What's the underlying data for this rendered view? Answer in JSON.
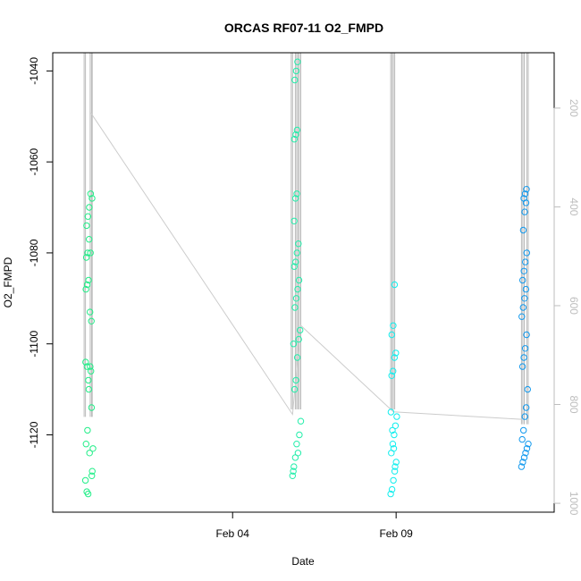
{
  "chart_data": {
    "type": "scatter",
    "title": "ORCAS RF07-11 O2_FMPD",
    "xlabel": "Date",
    "ylabel": "O2_FMPD",
    "x_ticks": [
      "Feb 04",
      "Feb 09"
    ],
    "x_tick_dates": [
      "2016-02-04",
      "2016-02-09"
    ],
    "xlim": [
      "2016-01-29T12:00",
      "2016-02-13T20:00"
    ],
    "y_ticks": [
      -1040,
      -1060,
      -1080,
      -1100,
      -1120
    ],
    "ylim": [
      -1137,
      -1036
    ],
    "right_axis": {
      "ticks": [
        200,
        400,
        600,
        800,
        1000
      ],
      "lim": [
        1018,
        88
      ],
      "color": "#bdbdbd"
    },
    "grid": false,
    "series": [
      {
        "color": "#22ee88",
        "points": [
          [
            "2016-01-30T12:00",
            -1130
          ],
          [
            "2016-01-30T13:00",
            -1132.5
          ],
          [
            "2016-01-30T14:00",
            -1133
          ],
          [
            "2016-01-30T15:00",
            -1124
          ],
          [
            "2016-01-30T12:30",
            -1122
          ],
          [
            "2016-01-30T13:30",
            -1119
          ],
          [
            "2016-01-30T14:30",
            -1110
          ],
          [
            "2016-01-30T16:00",
            -1106
          ],
          [
            "2016-01-30T12:10",
            -1104
          ],
          [
            "2016-01-30T13:10",
            -1105
          ],
          [
            "2016-01-30T14:10",
            -1108
          ],
          [
            "2016-01-30T15:30",
            -1105
          ],
          [
            "2016-01-30T16:30",
            -1114
          ],
          [
            "2016-01-30T17:00",
            -1128
          ],
          [
            "2016-01-30T17:30",
            -1123
          ],
          [
            "2016-01-30T16:40",
            -1129
          ],
          [
            "2016-01-30T12:20",
            -1088
          ],
          [
            "2016-01-30T13:20",
            -1087
          ],
          [
            "2016-01-30T14:20",
            -1086
          ],
          [
            "2016-01-30T15:20",
            -1093
          ],
          [
            "2016-01-30T16:20",
            -1095
          ],
          [
            "2016-01-30T12:40",
            -1081
          ],
          [
            "2016-01-30T13:40",
            -1080
          ],
          [
            "2016-01-30T14:40",
            -1077
          ],
          [
            "2016-01-30T15:40",
            -1080
          ],
          [
            "2016-01-30T12:50",
            -1074
          ],
          [
            "2016-01-30T13:50",
            -1072
          ],
          [
            "2016-01-30T14:50",
            -1070
          ],
          [
            "2016-01-30T15:50",
            -1067
          ],
          [
            "2016-01-30T16:50",
            -1068
          ]
        ]
      },
      {
        "color": "#22eeaa",
        "points": [
          [
            "2016-02-05T20:00",
            -1129
          ],
          [
            "2016-02-05T21:00",
            -1127
          ],
          [
            "2016-02-05T22:00",
            -1125
          ],
          [
            "2016-02-05T23:00",
            -1122
          ],
          [
            "2016-02-06T00:00",
            -1124
          ],
          [
            "2016-02-06T01:00",
            -1120
          ],
          [
            "2016-02-06T02:00",
            -1117
          ],
          [
            "2016-02-05T20:30",
            -1128
          ],
          [
            "2016-02-05T21:30",
            -1110
          ],
          [
            "2016-02-05T22:30",
            -1108
          ],
          [
            "2016-02-05T23:30",
            -1103
          ],
          [
            "2016-02-06T00:30",
            -1099
          ],
          [
            "2016-02-06T01:30",
            -1097
          ],
          [
            "2016-02-05T20:45",
            -1100
          ],
          [
            "2016-02-05T21:45",
            -1092
          ],
          [
            "2016-02-05T22:45",
            -1090
          ],
          [
            "2016-02-05T23:45",
            -1088
          ],
          [
            "2016-02-06T00:45",
            -1086
          ],
          [
            "2016-02-05T21:15",
            -1083
          ],
          [
            "2016-02-05T22:15",
            -1082
          ],
          [
            "2016-02-05T23:15",
            -1080
          ],
          [
            "2016-02-06T00:15",
            -1078
          ],
          [
            "2016-02-05T21:10",
            -1073
          ],
          [
            "2016-02-05T22:10",
            -1068
          ],
          [
            "2016-02-05T23:10",
            -1067
          ],
          [
            "2016-02-05T21:20",
            -1055
          ],
          [
            "2016-02-05T22:20",
            -1054
          ],
          [
            "2016-02-05T23:20",
            -1053
          ],
          [
            "2016-02-05T21:40",
            -1042
          ],
          [
            "2016-02-05T22:40",
            -1040
          ],
          [
            "2016-02-05T23:40",
            -1038
          ]
        ]
      },
      {
        "color": "#11eeee",
        "points": [
          [
            "2016-02-08T20:00",
            -1133
          ],
          [
            "2016-02-08T21:00",
            -1132
          ],
          [
            "2016-02-08T22:00",
            -1130
          ],
          [
            "2016-02-08T23:00",
            -1128
          ],
          [
            "2016-02-09T00:00",
            -1126
          ],
          [
            "2016-02-08T20:30",
            -1124
          ],
          [
            "2016-02-08T21:30",
            -1122
          ],
          [
            "2016-02-08T22:30",
            -1120
          ],
          [
            "2016-02-08T23:30",
            -1118
          ],
          [
            "2016-02-09T00:30",
            -1116
          ],
          [
            "2016-02-08T20:15",
            -1115
          ],
          [
            "2016-02-08T21:15",
            -1119
          ],
          [
            "2016-02-08T22:15",
            -1123
          ],
          [
            "2016-02-08T23:15",
            -1127
          ],
          [
            "2016-02-08T20:45",
            -1107
          ],
          [
            "2016-02-08T21:45",
            -1106
          ],
          [
            "2016-02-08T22:45",
            -1103
          ],
          [
            "2016-02-08T23:45",
            -1102
          ],
          [
            "2016-02-08T20:50",
            -1098
          ],
          [
            "2016-02-08T21:50",
            -1096
          ],
          [
            "2016-02-08T22:50",
            -1087
          ]
        ]
      },
      {
        "color": "#1199ee",
        "points": [
          [
            "2016-02-12T20:00",
            -1127
          ],
          [
            "2016-02-12T21:00",
            -1126
          ],
          [
            "2016-02-12T22:00",
            -1125
          ],
          [
            "2016-02-12T23:00",
            -1124
          ],
          [
            "2016-02-13T00:00",
            -1123
          ],
          [
            "2016-02-13T01:00",
            -1122
          ],
          [
            "2016-02-12T20:30",
            -1121
          ],
          [
            "2016-02-12T21:30",
            -1119
          ],
          [
            "2016-02-12T22:30",
            -1116
          ],
          [
            "2016-02-12T23:30",
            -1114
          ],
          [
            "2016-02-13T00:30",
            -1110
          ],
          [
            "2016-02-12T20:45",
            -1105
          ],
          [
            "2016-02-12T21:45",
            -1103
          ],
          [
            "2016-02-12T22:45",
            -1101
          ],
          [
            "2016-02-12T23:45",
            -1098
          ],
          [
            "2016-02-12T20:15",
            -1094
          ],
          [
            "2016-02-12T21:15",
            -1092
          ],
          [
            "2016-02-12T22:15",
            -1090
          ],
          [
            "2016-02-12T23:15",
            -1088
          ],
          [
            "2016-02-12T20:50",
            -1086
          ],
          [
            "2016-02-12T21:50",
            -1084
          ],
          [
            "2016-02-12T22:50",
            -1082
          ],
          [
            "2016-02-12T23:50",
            -1080
          ],
          [
            "2016-02-12T21:20",
            -1075
          ],
          [
            "2016-02-12T22:20",
            -1071
          ],
          [
            "2016-02-12T23:20",
            -1069
          ],
          [
            "2016-02-12T21:40",
            -1068
          ],
          [
            "2016-02-12T22:40",
            -1067
          ],
          [
            "2016-02-12T23:40",
            -1066
          ]
        ]
      }
    ],
    "overlay_line": {
      "color": "#cccccc",
      "axis": "right",
      "points": [
        [
          "2016-01-30T16:00",
          210
        ],
        [
          "2016-02-05T20:00",
          820
        ],
        [
          "2016-02-06T02:00",
          640
        ],
        [
          "2016-02-08T22:00",
          815
        ],
        [
          "2016-02-12T20:00",
          830
        ]
      ]
    },
    "overlay_spikes": {
      "color": "#bbbbbb",
      "axis": "right",
      "top": 88,
      "groups": [
        {
          "times": [
            "2016-01-30T11:00",
            "2016-01-30T12:00",
            "2016-01-30T15:30",
            "2016-01-30T16:30",
            "2016-01-30T17:00"
          ],
          "bottom": 825
        },
        {
          "times": [
            "2016-02-05T19:00",
            "2016-02-05T20:00",
            "2016-02-05T22:00",
            "2016-02-05T23:00",
            "2016-02-06T00:00",
            "2016-02-06T01:00",
            "2016-02-06T02:00"
          ],
          "bottom": 810
        },
        {
          "times": [
            "2016-02-08T20:00",
            "2016-02-08T21:00",
            "2016-02-08T22:00",
            "2016-02-08T23:00"
          ],
          "bottom": 810
        },
        {
          "times": [
            "2016-02-12T20:00",
            "2016-02-12T21:00",
            "2016-02-12T22:00",
            "2016-02-13T00:00",
            "2016-02-13T01:00"
          ],
          "bottom": 840
        }
      ]
    }
  }
}
